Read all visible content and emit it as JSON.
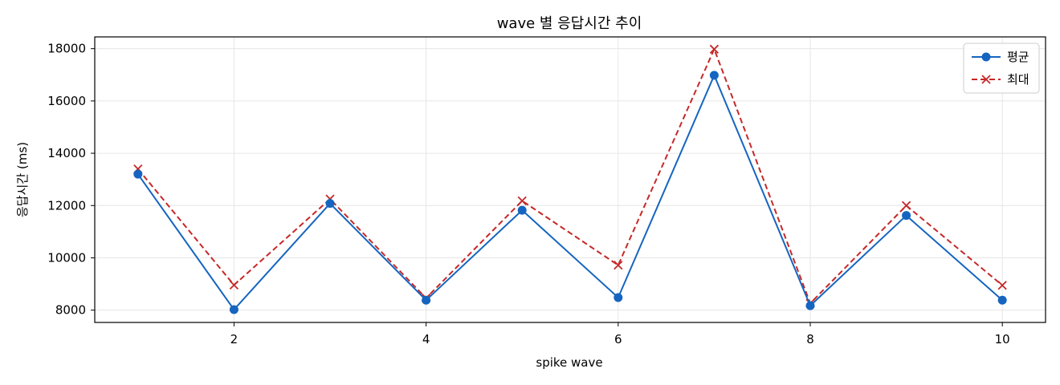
{
  "chart_data": {
    "type": "line",
    "title": "wave 별 응답시간 추이",
    "xlabel": "spike wave",
    "ylabel": "응답시간 (ms)",
    "x": [
      1,
      2,
      3,
      4,
      5,
      6,
      7,
      8,
      9,
      10
    ],
    "xlim": [
      0.55,
      10.45
    ],
    "ylim": [
      7530,
      18450
    ],
    "xticks": [
      2,
      4,
      6,
      8,
      10
    ],
    "yticks": [
      8000,
      10000,
      12000,
      14000,
      16000,
      18000
    ],
    "grid": true,
    "legend_position": "upper right",
    "series": [
      {
        "name": "평균",
        "values": [
          13200,
          8020,
          12080,
          8380,
          11820,
          8480,
          16980,
          8170,
          11620,
          8380
        ],
        "color": "#1565c0",
        "line_style": "solid",
        "marker": "circle"
      },
      {
        "name": "최대",
        "values": [
          13400,
          8960,
          12250,
          8460,
          12180,
          9720,
          17980,
          8260,
          12000,
          8950
        ],
        "color": "#c62828",
        "line_style": "dashed",
        "marker": "x"
      }
    ]
  }
}
